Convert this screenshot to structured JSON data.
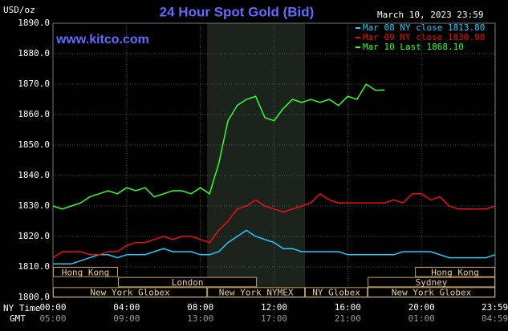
{
  "chart_data": {
    "type": "line",
    "title": "24 Hour Spot Gold (Bid)",
    "watermark": "www.kitco.com",
    "unit_label": "USD/oz",
    "timestamp": "March 10, 2023 23:59",
    "x_row_labels": [
      "NY Time",
      "GMT"
    ],
    "x": [
      0,
      0.5,
      1,
      1.5,
      2,
      2.5,
      3,
      3.5,
      4,
      4.5,
      5,
      5.5,
      6,
      6.5,
      7,
      7.5,
      8,
      8.5,
      9,
      9.5,
      10,
      10.5,
      11,
      11.5,
      12,
      12.5,
      13,
      13.5,
      14,
      14.5,
      15,
      15.5,
      16,
      16.5,
      17,
      17.5,
      18,
      18.5,
      19,
      19.5,
      20,
      20.5,
      21,
      21.5,
      22,
      22.5,
      23,
      23.5,
      24
    ],
    "series": [
      {
        "name": "Mar 08 NY close 1813.80",
        "color": "#22ccff",
        "values": [
          1811,
          1811,
          1811,
          1812,
          1813,
          1814,
          1814,
          1813,
          1814,
          1814,
          1814,
          1815,
          1816,
          1815,
          1815,
          1815,
          1814,
          1814,
          1815,
          1818,
          1820,
          1822,
          1820,
          1819,
          1818,
          1816,
          1816,
          1815,
          1815,
          1815,
          1815,
          1815,
          1814,
          1814,
          1814,
          1814,
          1814,
          1814,
          1815,
          1815,
          1815,
          1815,
          1814,
          1813,
          1813,
          1813,
          1813,
          1813,
          1814
        ]
      },
      {
        "name": "Mar 09 NY close 1830.90",
        "color": "#ee1111",
        "values": [
          1813,
          1815,
          1815,
          1815,
          1814,
          1814,
          1815,
          1815,
          1817,
          1818,
          1818,
          1819,
          1820,
          1819,
          1820,
          1820,
          1819,
          1818,
          1822,
          1825,
          1829,
          1830,
          1832,
          1830,
          1829,
          1828,
          1829,
          1830,
          1831,
          1834,
          1832,
          1831,
          1831,
          1831,
          1831,
          1831,
          1831,
          1832,
          1831,
          1834,
          1834,
          1832,
          1833,
          1830,
          1829,
          1829,
          1829,
          1829,
          1830
        ]
      },
      {
        "name": "Mar 10 Last 1868.10",
        "color": "#33ff33",
        "values": [
          1830,
          1829,
          1830,
          1831,
          1833,
          1834,
          1835,
          1834,
          1836,
          1835,
          1836,
          1833,
          1834,
          1835,
          1835,
          1834,
          1836,
          1834,
          1844,
          1858,
          1863,
          1865,
          1866,
          1859,
          1858,
          1862,
          1865,
          1864,
          1865,
          1864,
          1865,
          1863,
          1866,
          1865,
          1870,
          1868,
          1868.1,
          null,
          null,
          null,
          null,
          null,
          null,
          null,
          null,
          null,
          null,
          null,
          null
        ]
      }
    ],
    "xlim": [
      0,
      24
    ],
    "xticks": [
      {
        "value": 0,
        "label": "00:00"
      },
      {
        "value": 4,
        "label": "04:00"
      },
      {
        "value": 8,
        "label": "08:00"
      },
      {
        "value": 12,
        "label": "12:00"
      },
      {
        "value": 16,
        "label": "16:00"
      },
      {
        "value": 20,
        "label": "20:00"
      },
      {
        "value": 23.98,
        "label": "23:59"
      }
    ],
    "gmt_labels": [
      "05:00",
      "09:00",
      "13:00",
      "17:00",
      "21:00",
      "01:00",
      "04:59"
    ],
    "ylim": [
      1800,
      1890
    ],
    "yticks": [
      {
        "value": 1800,
        "label": "1800.0"
      },
      {
        "value": 1810,
        "label": "1810.0"
      },
      {
        "value": 1820,
        "label": "1820.0"
      },
      {
        "value": 1830,
        "label": "1830.0"
      },
      {
        "value": 1840,
        "label": "1840.0"
      },
      {
        "value": 1850,
        "label": "1850.0"
      },
      {
        "value": 1860,
        "label": "1860.0"
      },
      {
        "value": 1870,
        "label": "1870.0"
      },
      {
        "value": 1880,
        "label": "1880.0"
      },
      {
        "value": 1890,
        "label": "1890.0"
      }
    ],
    "grid": true,
    "shade": [
      8.37,
      13.68
    ],
    "sessions": [
      [
        {
          "label": "Hong Kong",
          "start": 0,
          "end": 3.53
        },
        {
          "label": "Hong Kong",
          "start": 19.65,
          "end": 24
        }
      ],
      [
        {
          "label": "London",
          "start": 3.53,
          "end": 11.07
        },
        {
          "label": "Sydney",
          "start": 17.08,
          "end": 24
        }
      ],
      [
        {
          "label": "New York Globex",
          "start": 0,
          "end": 8.37
        },
        {
          "label": "New York NYMEX",
          "start": 8.37,
          "end": 13.68
        },
        {
          "label": "NY Globex",
          "start": 13.68,
          "end": 17.08
        },
        {
          "label": "New York Globex",
          "start": 17.08,
          "end": 24
        }
      ]
    ]
  }
}
